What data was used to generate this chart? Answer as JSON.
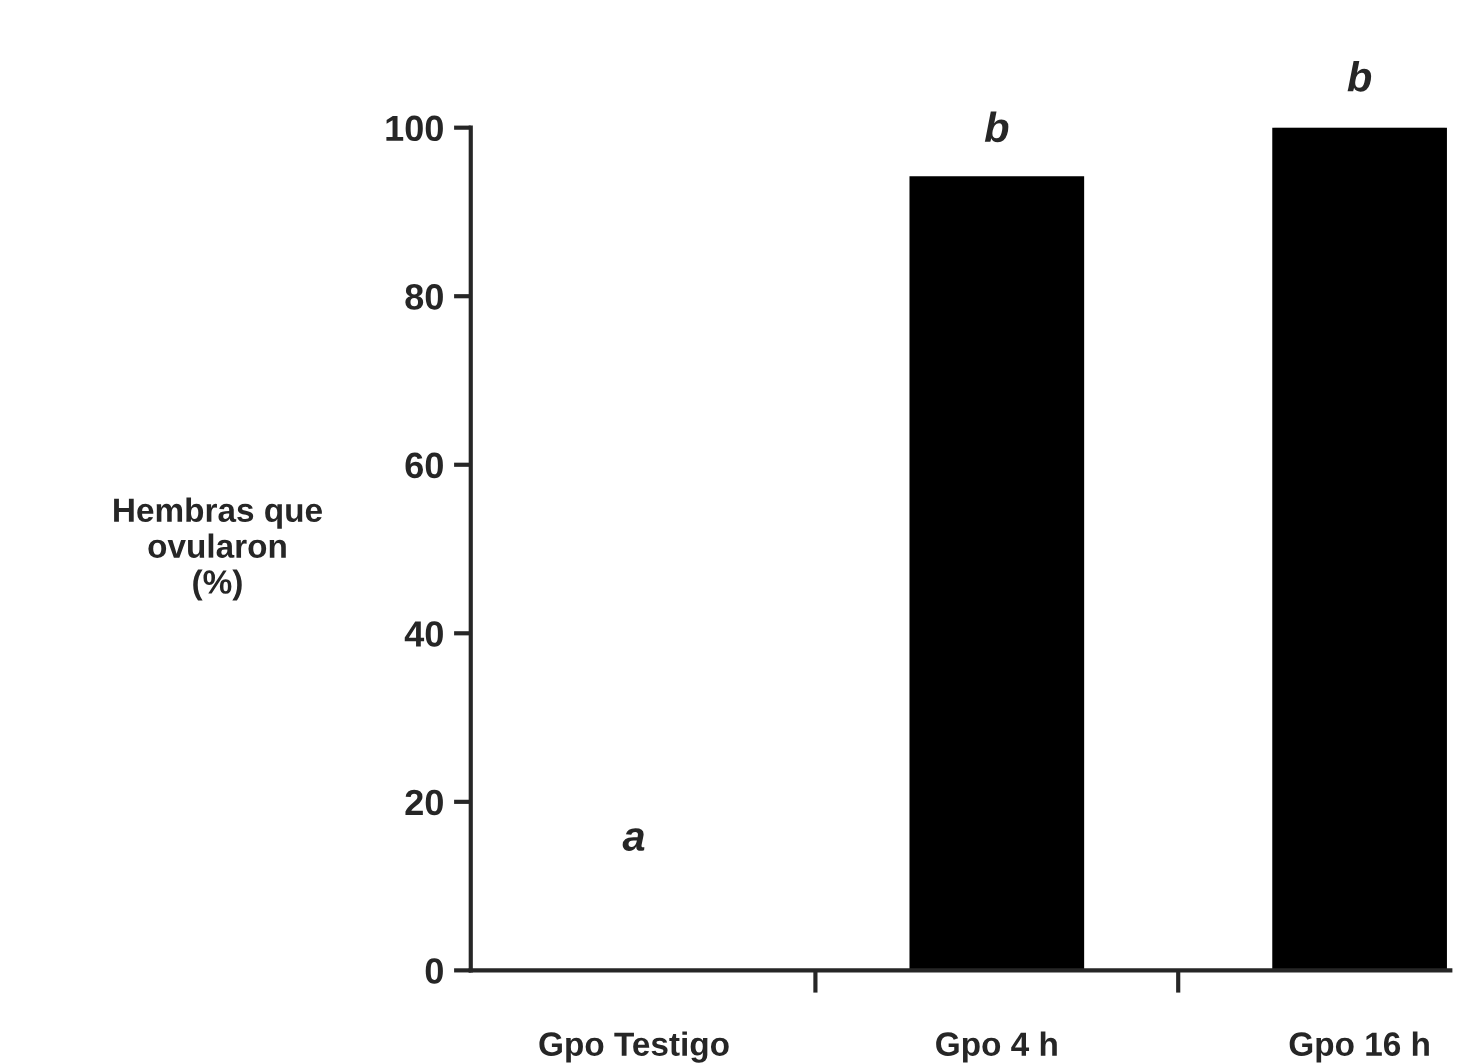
{
  "chart_data": {
    "type": "bar",
    "ylabel": "Hembras que\novularon\n(%)",
    "categories": [
      "Gpo Testigo",
      "Gpo 4 h",
      "Gpo 16 h"
    ],
    "values": [
      0,
      94,
      100
    ],
    "color": "#000000",
    "ylim": [
      0,
      100
    ],
    "yticks": [
      0,
      20,
      40,
      60,
      80,
      100
    ],
    "grid": false,
    "legend": false,
    "annotations": [
      {
        "text": "a",
        "x": "Gpo Testigo",
        "y": 0
      },
      {
        "text": "b",
        "x": "Gpo 4 h",
        "y": 94
      },
      {
        "text": "b",
        "x": "Gpo 16 h",
        "y": 100
      }
    ]
  }
}
